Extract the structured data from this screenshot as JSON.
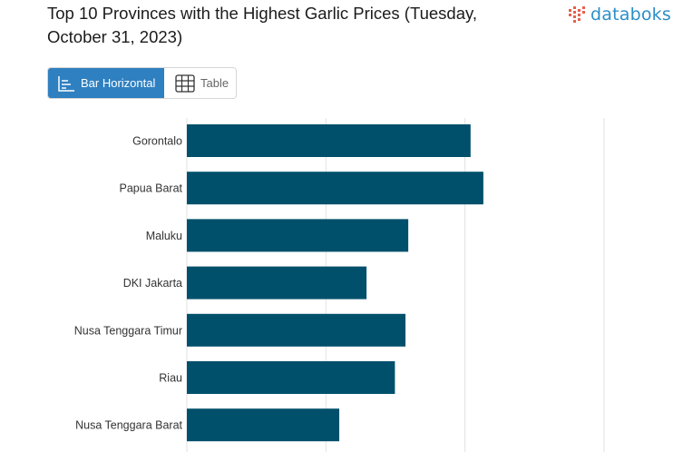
{
  "header": {
    "title": "Top 10 Provinces with the Highest Garlic Prices (Tuesday, October 31, 2023)",
    "brand": "databoks"
  },
  "toolbar": {
    "bar_label": "Bar Horizontal",
    "table_label": "Table"
  },
  "colors": {
    "bar": "#00506b",
    "accent": "#2f80c1",
    "brand_text": "#2b8fc7",
    "brand_mark": "#e8604c"
  },
  "chart_data": {
    "type": "bar",
    "orientation": "horizontal",
    "title": "Top 10 Provinces with the Highest Garlic Prices (Tuesday, October 31, 2023)",
    "categories": [
      "Gorontalo",
      "Papua Barat",
      "Maluku",
      "DKI Jakarta",
      "Nusa Tenggara Timur",
      "Riau",
      "Nusa Tenggara Barat"
    ],
    "values": [
      51000,
      53300,
      39800,
      32300,
      39300,
      37400,
      27400
    ],
    "xlim": [
      0,
      75000
    ],
    "grid": true,
    "legend": "none"
  }
}
